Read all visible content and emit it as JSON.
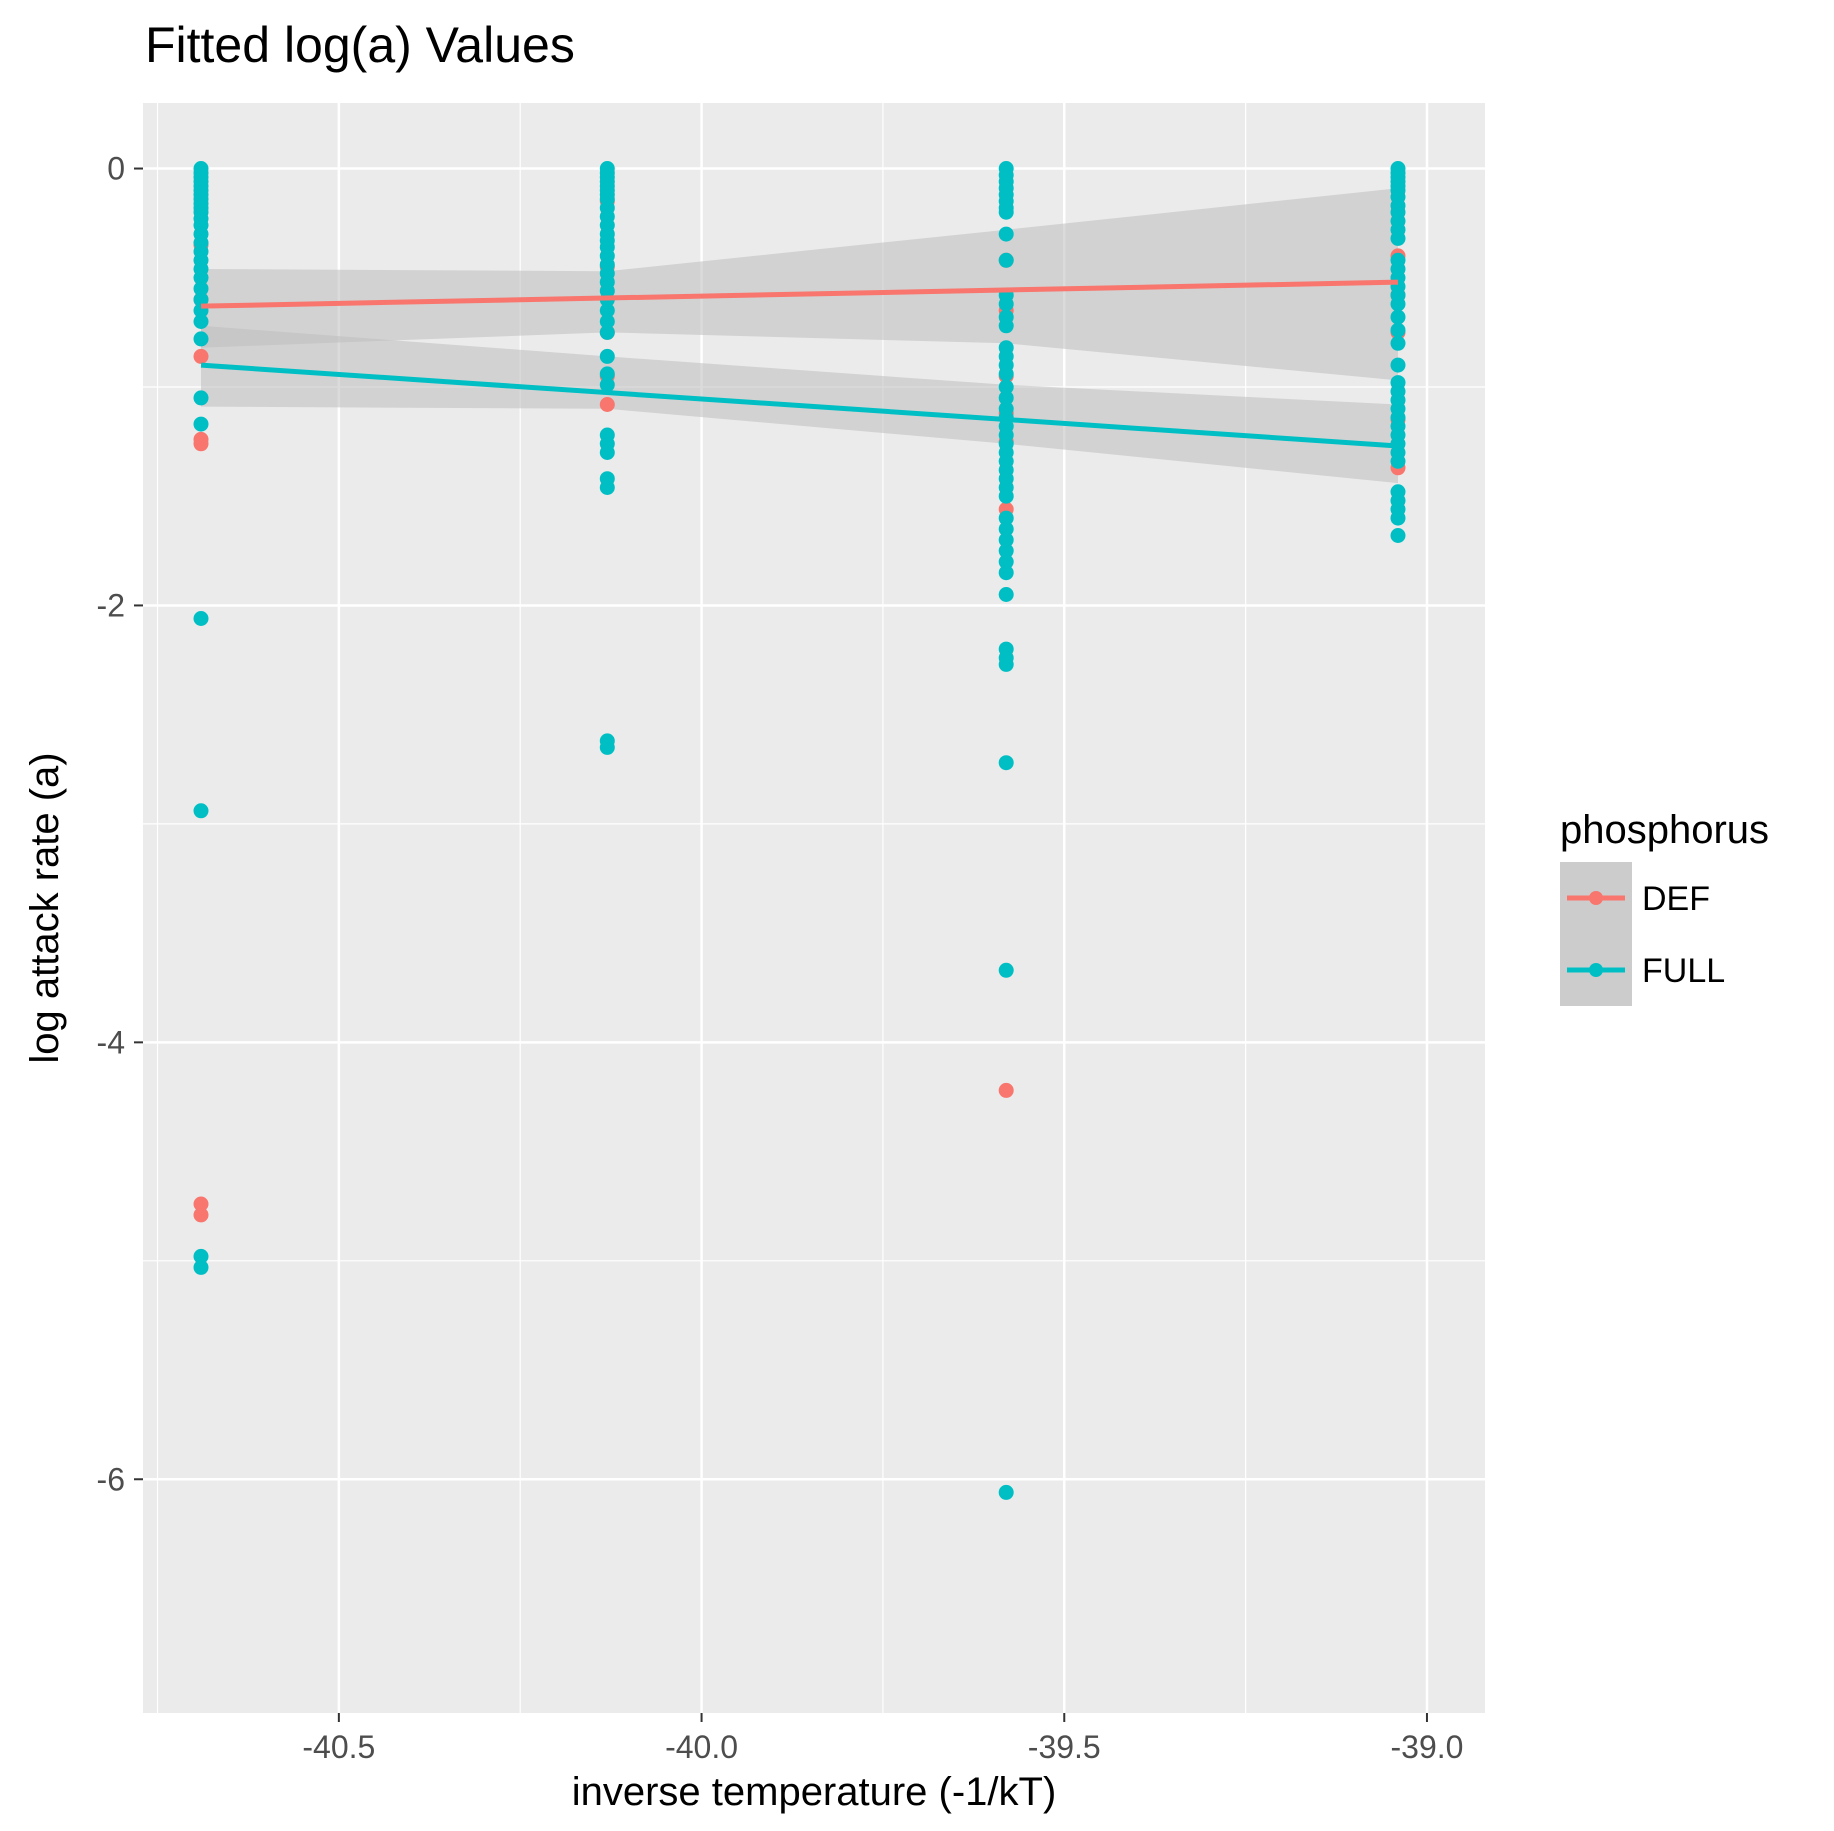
{
  "chart_data": {
    "type": "scatter",
    "title": "Fitted log(a) Values",
    "xlabel": "inverse temperature (-1/kT)",
    "ylabel": "log attack rate (a)",
    "xlim": [
      -40.77,
      -38.92
    ],
    "ylim": [
      -7.07,
      0.3
    ],
    "x_ticks": [
      -40.5,
      -40.0,
      -39.5,
      -39.0
    ],
    "x_tick_labels": [
      "-40.5",
      "-40.0",
      "-39.5",
      "-39.0"
    ],
    "y_ticks": [
      0,
      -2,
      -4,
      -6
    ],
    "y_tick_labels": [
      "0",
      "-2",
      "-4",
      "-6"
    ],
    "grid": true,
    "legend": {
      "title": "phosphorus",
      "position": "right",
      "entries": [
        "DEF",
        "FULL"
      ]
    },
    "colors": {
      "DEF": "#F8766D",
      "FULL": "#00BFC4",
      "panel": "#EBEBEB",
      "band": "#BEBEBE"
    },
    "series": [
      {
        "name": "DEF",
        "x_groups": [
          -40.69,
          -40.13,
          -39.58,
          -39.04
        ],
        "points": [
          [
            -40.69,
            -0.35
          ],
          [
            -40.69,
            -0.6
          ],
          [
            -40.69,
            -0.86
          ],
          [
            -40.69,
            -1.24
          ],
          [
            -40.69,
            -1.26
          ],
          [
            -40.69,
            -4.74
          ],
          [
            -40.69,
            -4.79
          ],
          [
            -40.13,
            -0.15
          ],
          [
            -40.13,
            -0.45
          ],
          [
            -40.13,
            -0.75
          ],
          [
            -40.13,
            -0.95
          ],
          [
            -40.13,
            -1.08
          ],
          [
            -39.58,
            -0.42
          ],
          [
            -39.58,
            -0.65
          ],
          [
            -39.58,
            -0.95
          ],
          [
            -39.58,
            -1.12
          ],
          [
            -39.58,
            -1.25
          ],
          [
            -39.58,
            -1.56
          ],
          [
            -39.58,
            -4.22
          ],
          [
            -39.04,
            -0.4
          ],
          [
            -39.04,
            -0.58
          ],
          [
            -39.04,
            -0.75
          ],
          [
            -39.04,
            -1.15
          ],
          [
            -39.04,
            -1.37
          ]
        ],
        "fit": {
          "x": [
            -40.69,
            -39.04
          ],
          "y": [
            -0.63,
            -0.52
          ]
        },
        "ci": {
          "x": [
            -40.69,
            -40.13,
            -39.58,
            -39.04
          ],
          "lower": [
            -0.82,
            -0.75,
            -0.8,
            -0.97
          ],
          "upper": [
            -0.46,
            -0.47,
            -0.28,
            -0.09
          ]
        }
      },
      {
        "name": "FULL",
        "x_groups": [
          -40.69,
          -40.13,
          -39.58,
          -39.04
        ],
        "points": [
          [
            -40.69,
            0.0
          ],
          [
            -40.69,
            -0.02
          ],
          [
            -40.69,
            -0.04
          ],
          [
            -40.69,
            -0.06
          ],
          [
            -40.69,
            -0.08
          ],
          [
            -40.69,
            -0.1
          ],
          [
            -40.69,
            -0.12
          ],
          [
            -40.69,
            -0.14
          ],
          [
            -40.69,
            -0.16
          ],
          [
            -40.69,
            -0.18
          ],
          [
            -40.69,
            -0.2
          ],
          [
            -40.69,
            -0.23
          ],
          [
            -40.69,
            -0.26
          ],
          [
            -40.69,
            -0.3
          ],
          [
            -40.69,
            -0.34
          ],
          [
            -40.69,
            -0.38
          ],
          [
            -40.69,
            -0.42
          ],
          [
            -40.69,
            -0.46
          ],
          [
            -40.69,
            -0.5
          ],
          [
            -40.69,
            -0.55
          ],
          [
            -40.69,
            -0.6
          ],
          [
            -40.69,
            -0.65
          ],
          [
            -40.69,
            -0.7
          ],
          [
            -40.69,
            -0.78
          ],
          [
            -40.69,
            -1.05
          ],
          [
            -40.69,
            -1.17
          ],
          [
            -40.69,
            -2.06
          ],
          [
            -40.69,
            -2.94
          ],
          [
            -40.69,
            -4.98
          ],
          [
            -40.69,
            -5.03
          ],
          [
            -40.13,
            0.0
          ],
          [
            -40.13,
            -0.02
          ],
          [
            -40.13,
            -0.04
          ],
          [
            -40.13,
            -0.06
          ],
          [
            -40.13,
            -0.08
          ],
          [
            -40.13,
            -0.1
          ],
          [
            -40.13,
            -0.12
          ],
          [
            -40.13,
            -0.14
          ],
          [
            -40.13,
            -0.18
          ],
          [
            -40.13,
            -0.22
          ],
          [
            -40.13,
            -0.26
          ],
          [
            -40.13,
            -0.3
          ],
          [
            -40.13,
            -0.33
          ],
          [
            -40.13,
            -0.36
          ],
          [
            -40.13,
            -0.4
          ],
          [
            -40.13,
            -0.44
          ],
          [
            -40.13,
            -0.48
          ],
          [
            -40.13,
            -0.52
          ],
          [
            -40.13,
            -0.56
          ],
          [
            -40.13,
            -0.6
          ],
          [
            -40.13,
            -0.65
          ],
          [
            -40.13,
            -0.7
          ],
          [
            -40.13,
            -0.75
          ],
          [
            -40.13,
            -0.86
          ],
          [
            -40.13,
            -0.94
          ],
          [
            -40.13,
            -0.99
          ],
          [
            -40.13,
            -1.22
          ],
          [
            -40.13,
            -1.26
          ],
          [
            -40.13,
            -1.3
          ],
          [
            -40.13,
            -1.42
          ],
          [
            -40.13,
            -1.46
          ],
          [
            -40.13,
            -2.62
          ],
          [
            -40.13,
            -2.65
          ],
          [
            -39.58,
            0.0
          ],
          [
            -39.58,
            -0.03
          ],
          [
            -39.58,
            -0.06
          ],
          [
            -39.58,
            -0.09
          ],
          [
            -39.58,
            -0.12
          ],
          [
            -39.58,
            -0.15
          ],
          [
            -39.58,
            -0.18
          ],
          [
            -39.58,
            -0.2
          ],
          [
            -39.58,
            -0.3
          ],
          [
            -39.58,
            -0.42
          ],
          [
            -39.58,
            -0.58
          ],
          [
            -39.58,
            -0.62
          ],
          [
            -39.58,
            -0.68
          ],
          [
            -39.58,
            -0.72
          ],
          [
            -39.58,
            -0.82
          ],
          [
            -39.58,
            -0.86
          ],
          [
            -39.58,
            -0.9
          ],
          [
            -39.58,
            -0.94
          ],
          [
            -39.58,
            -1.0
          ],
          [
            -39.58,
            -1.05
          ],
          [
            -39.58,
            -1.1
          ],
          [
            -39.58,
            -1.14
          ],
          [
            -39.58,
            -1.18
          ],
          [
            -39.58,
            -1.22
          ],
          [
            -39.58,
            -1.26
          ],
          [
            -39.58,
            -1.3
          ],
          [
            -39.58,
            -1.34
          ],
          [
            -39.58,
            -1.38
          ],
          [
            -39.58,
            -1.42
          ],
          [
            -39.58,
            -1.46
          ],
          [
            -39.58,
            -1.5
          ],
          [
            -39.58,
            -1.6
          ],
          [
            -39.58,
            -1.65
          ],
          [
            -39.58,
            -1.7
          ],
          [
            -39.58,
            -1.75
          ],
          [
            -39.58,
            -1.8
          ],
          [
            -39.58,
            -1.85
          ],
          [
            -39.58,
            -1.95
          ],
          [
            -39.58,
            -2.2
          ],
          [
            -39.58,
            -2.24
          ],
          [
            -39.58,
            -2.27
          ],
          [
            -39.58,
            -2.72
          ],
          [
            -39.58,
            -3.67
          ],
          [
            -39.58,
            -6.06
          ],
          [
            -39.04,
            0.0
          ],
          [
            -39.04,
            -0.02
          ],
          [
            -39.04,
            -0.04
          ],
          [
            -39.04,
            -0.06
          ],
          [
            -39.04,
            -0.08
          ],
          [
            -39.04,
            -0.1
          ],
          [
            -39.04,
            -0.13
          ],
          [
            -39.04,
            -0.17
          ],
          [
            -39.04,
            -0.2
          ],
          [
            -39.04,
            -0.24
          ],
          [
            -39.04,
            -0.28
          ],
          [
            -39.04,
            -0.32
          ],
          [
            -39.04,
            -0.42
          ],
          [
            -39.04,
            -0.46
          ],
          [
            -39.04,
            -0.5
          ],
          [
            -39.04,
            -0.54
          ],
          [
            -39.04,
            -0.58
          ],
          [
            -39.04,
            -0.62
          ],
          [
            -39.04,
            -0.68
          ],
          [
            -39.04,
            -0.74
          ],
          [
            -39.04,
            -0.8
          ],
          [
            -39.04,
            -0.9
          ],
          [
            -39.04,
            -0.98
          ],
          [
            -39.04,
            -1.02
          ],
          [
            -39.04,
            -1.06
          ],
          [
            -39.04,
            -1.1
          ],
          [
            -39.04,
            -1.14
          ],
          [
            -39.04,
            -1.18
          ],
          [
            -39.04,
            -1.22
          ],
          [
            -39.04,
            -1.26
          ],
          [
            -39.04,
            -1.3
          ],
          [
            -39.04,
            -1.34
          ],
          [
            -39.04,
            -1.48
          ],
          [
            -39.04,
            -1.52
          ],
          [
            -39.04,
            -1.56
          ],
          [
            -39.04,
            -1.6
          ],
          [
            -39.04,
            -1.68
          ]
        ],
        "fit": {
          "x": [
            -40.69,
            -39.04
          ],
          "y": [
            -0.9,
            -1.27
          ]
        },
        "ci": {
          "x": [
            -40.69,
            -40.13,
            -39.58,
            -39.04
          ],
          "lower": [
            -1.09,
            -1.1,
            -1.26,
            -1.44
          ],
          "upper": [
            -0.72,
            -0.86,
            -0.99,
            -1.08
          ]
        }
      }
    ]
  }
}
